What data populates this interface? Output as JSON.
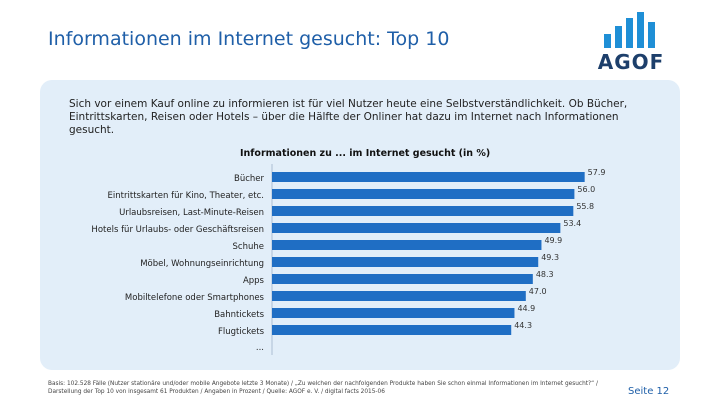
{
  "slide": {
    "title": "Informationen im Internet gesucht: Top 10",
    "intro": "Sich vor einem Kauf online zu informieren ist für viel Nutzer heute eine Selbstverständlichkeit. Ob Bücher, Eintrittskarten, Reisen oder Hotels – über die Hälfte der Onliner hat dazu im Internet nach Informationen gesucht.",
    "footnote": "Basis: 102.528 Fälle (Nutzer stationäre und/oder mobile Angebote letzte 3 Monate) / „Zu welchen der nachfolgenden Produkte haben Sie schon einmal Informationen im Internet gesucht?“ / Darstellung der Top 10 von insgesamt 61 Produkten / Angaben in Prozent / Quelle: AGOF e. V. / digital facts 2015-06",
    "page_label": "Seite 12"
  },
  "logo": {
    "text": "AGOF",
    "bar_color": "#1f8fd6",
    "text_color": "#1d3f6b"
  },
  "colors": {
    "bar": "#1f6ec4",
    "panel": "#e2eef9",
    "title": "#1f5fa8"
  },
  "chart_data": {
    "type": "bar",
    "orientation": "horizontal",
    "title": "Informationen zu ... im Internet gesucht (in %)",
    "categories": [
      "Bücher",
      "Eintrittskarten für Kino, Theater, etc.",
      "Urlaubsreisen, Last-Minute-Reisen",
      "Hotels für Urlaubs- oder Geschäftsreisen",
      "Schuhe",
      "Möbel, Wohnungseinrichtung",
      "Apps",
      "Mobiltelefone oder Smartphones",
      "Bahntickets",
      "Flugtickets"
    ],
    "values": [
      57.9,
      56.0,
      55.8,
      53.4,
      49.9,
      49.3,
      48.3,
      47.0,
      44.9,
      44.3
    ],
    "value_labels": [
      "57.9",
      "56.0",
      "55.8",
      "53.4",
      "49.9",
      "49.3",
      "48.3",
      "47.0",
      "44.9",
      "44.3"
    ],
    "trailing_label": "...",
    "xlim": [
      0,
      62
    ],
    "grid": false
  }
}
